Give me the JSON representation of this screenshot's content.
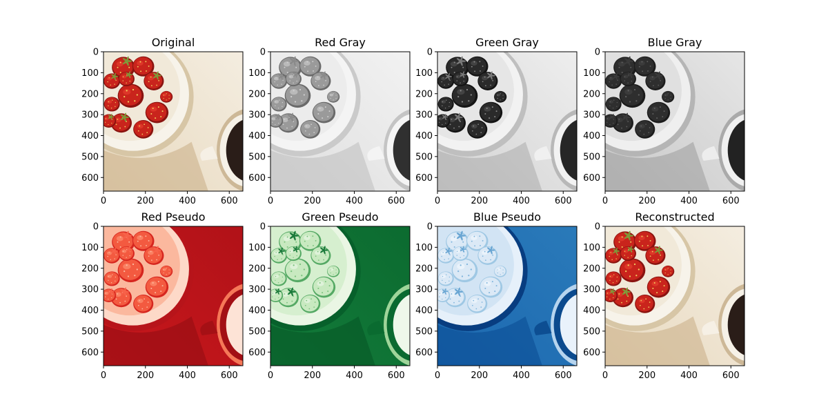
{
  "figure": {
    "image_extent": 665
  },
  "chart_data": [
    {
      "type": "image",
      "title": "Original",
      "render": "original",
      "xticks": [
        0,
        200,
        400,
        600
      ],
      "yticks": [
        0,
        100,
        200,
        300,
        400,
        500,
        600
      ],
      "xlim": [
        0,
        665
      ],
      "ylim": [
        665,
        0
      ]
    },
    {
      "type": "image",
      "title": "Red Gray",
      "render": "gray-red",
      "xticks": [
        0,
        200,
        400,
        600
      ],
      "yticks": [
        0,
        100,
        200,
        300,
        400,
        500,
        600
      ],
      "xlim": [
        0,
        665
      ],
      "ylim": [
        665,
        0
      ]
    },
    {
      "type": "image",
      "title": "Green Gray",
      "render": "gray-green",
      "xticks": [
        0,
        200,
        400,
        600
      ],
      "yticks": [
        0,
        100,
        200,
        300,
        400,
        500,
        600
      ],
      "xlim": [
        0,
        665
      ],
      "ylim": [
        665,
        0
      ]
    },
    {
      "type": "image",
      "title": "Blue Gray",
      "render": "gray-blue",
      "xticks": [
        0,
        200,
        400,
        600
      ],
      "yticks": [
        0,
        100,
        200,
        300,
        400,
        500,
        600
      ],
      "xlim": [
        0,
        665
      ],
      "ylim": [
        665,
        0
      ]
    },
    {
      "type": "image",
      "title": "Red Pseudo",
      "render": "pseudo-red",
      "colormap": "Reds",
      "xticks": [
        0,
        200,
        400,
        600
      ],
      "yticks": [
        0,
        100,
        200,
        300,
        400,
        500,
        600
      ],
      "xlim": [
        0,
        665
      ],
      "ylim": [
        665,
        0
      ]
    },
    {
      "type": "image",
      "title": "Green Pseudo",
      "render": "pseudo-green",
      "colormap": "Greens",
      "xticks": [
        0,
        200,
        400,
        600
      ],
      "yticks": [
        0,
        100,
        200,
        300,
        400,
        500,
        600
      ],
      "xlim": [
        0,
        665
      ],
      "ylim": [
        665,
        0
      ]
    },
    {
      "type": "image",
      "title": "Blue Pseudo",
      "render": "pseudo-blue",
      "colormap": "Blues",
      "xticks": [
        0,
        200,
        400,
        600
      ],
      "yticks": [
        0,
        100,
        200,
        300,
        400,
        500,
        600
      ],
      "xlim": [
        0,
        665
      ],
      "ylim": [
        665,
        0
      ]
    },
    {
      "type": "image",
      "title": "Reconstructed",
      "render": "original",
      "xticks": [
        0,
        200,
        400,
        600
      ],
      "yticks": [
        0,
        100,
        200,
        300,
        400,
        500,
        600
      ],
      "xlim": [
        0,
        665
      ],
      "ylim": [
        665,
        0
      ]
    }
  ]
}
